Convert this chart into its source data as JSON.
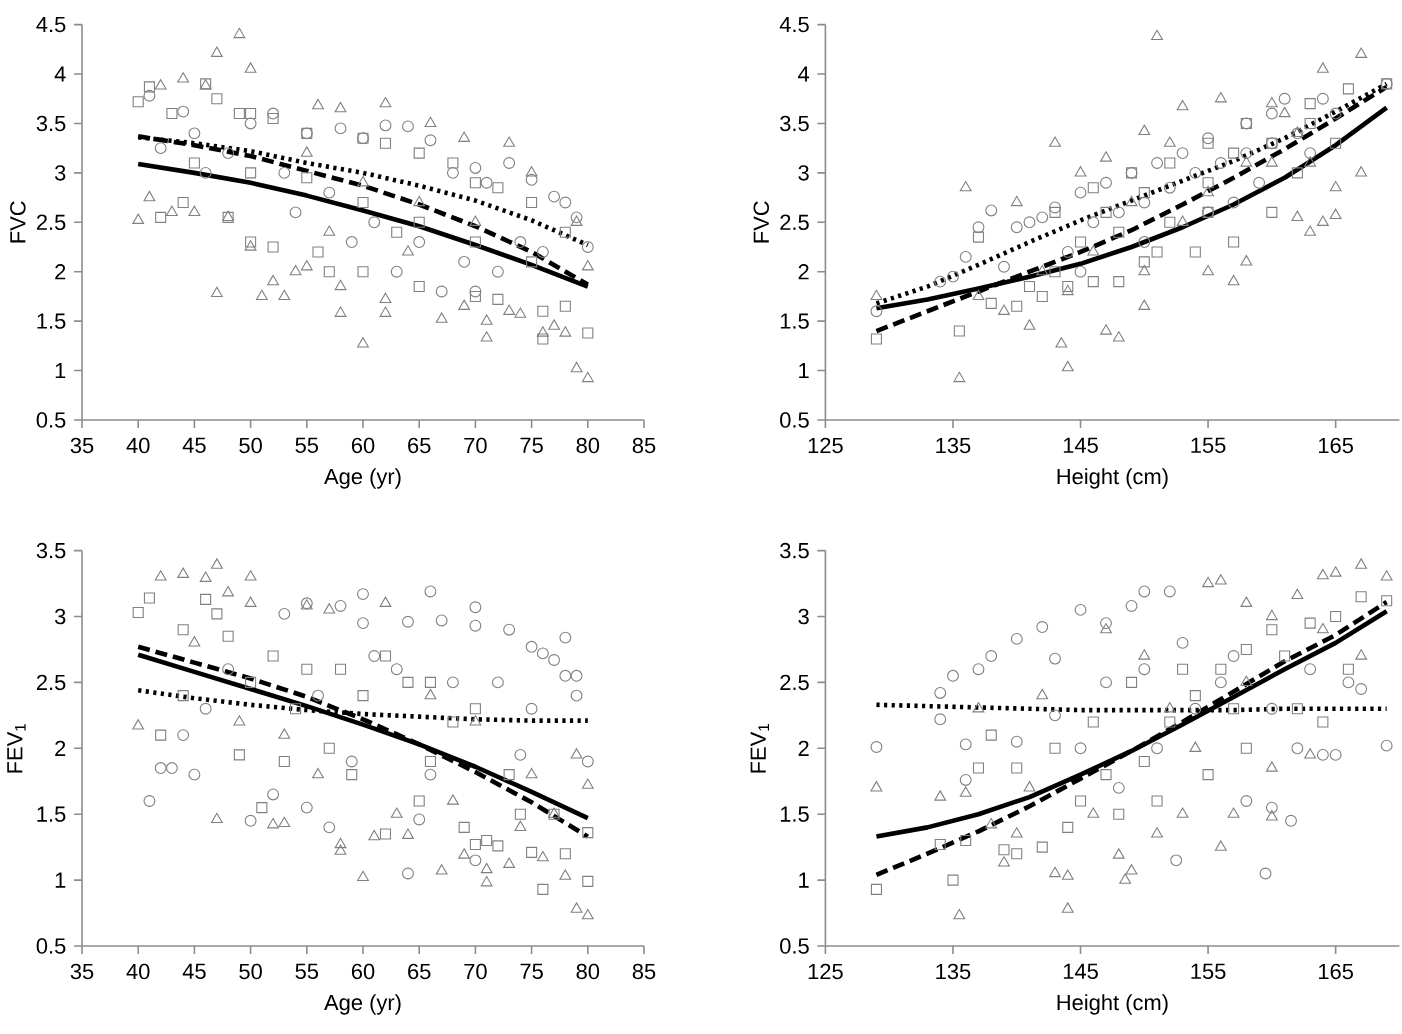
{
  "chart_data": [
    {
      "type": "scatter",
      "xlabel": "Age (yr)",
      "ylabel": "FVC",
      "xlim": [
        35,
        85
      ],
      "xticks": [
        35,
        40,
        45,
        50,
        55,
        60,
        65,
        70,
        75,
        80,
        85
      ],
      "ylim": [
        0.5,
        4.5
      ],
      "yticks": [
        0.5,
        1,
        1.5,
        2,
        2.5,
        3,
        3.5,
        4,
        4.5
      ],
      "series": [
        {
          "type": "scatter",
          "marker": "triangle",
          "color": "#808080",
          "x": [
            49,
            47,
            50,
            44,
            42,
            46,
            41,
            40,
            47,
            52,
            53,
            51,
            54,
            55,
            58,
            58,
            60,
            62,
            62,
            62,
            56,
            58,
            66,
            67,
            69,
            69,
            71,
            71,
            73,
            73,
            74,
            76,
            77,
            78,
            79,
            80,
            80,
            75,
            79,
            48,
            50,
            45,
            43,
            60,
            65,
            70,
            55,
            57,
            64
          ],
          "values": [
            4.4,
            4.21,
            4.05,
            3.95,
            3.88,
            3.88,
            2.75,
            2.52,
            1.78,
            1.9,
            1.75,
            1.75,
            2.0,
            2.05,
            1.58,
            1.85,
            1.27,
            1.58,
            1.72,
            3.7,
            3.68,
            3.65,
            3.5,
            1.52,
            1.65,
            3.35,
            1.33,
            1.5,
            3.3,
            1.6,
            1.57,
            1.38,
            1.45,
            1.38,
            1.02,
            0.92,
            2.05,
            3.0,
            2.5,
            2.55,
            2.25,
            2.6,
            2.6,
            2.9,
            2.7,
            2.5,
            3.2,
            2.4,
            2.2
          ]
        },
        {
          "type": "scatter",
          "marker": "square",
          "color": "#808080",
          "x": [
            40,
            41,
            43,
            46,
            42,
            47,
            49,
            50,
            52,
            55,
            60,
            62,
            65,
            68,
            70,
            72,
            75,
            78,
            80,
            76,
            76,
            78,
            72,
            70,
            65,
            60,
            56,
            52,
            50,
            48,
            44,
            55,
            60,
            65,
            70,
            75,
            45,
            50,
            63,
            57
          ],
          "values": [
            3.72,
            3.87,
            3.6,
            3.9,
            2.55,
            3.75,
            3.6,
            3.6,
            3.55,
            3.4,
            3.35,
            3.3,
            3.2,
            3.1,
            2.9,
            2.85,
            2.7,
            2.4,
            1.38,
            1.32,
            1.6,
            1.65,
            1.72,
            1.75,
            1.85,
            2.0,
            2.2,
            2.25,
            2.3,
            2.55,
            2.7,
            2.95,
            2.7,
            2.5,
            2.3,
            2.1,
            3.1,
            3.0,
            2.4,
            2.0
          ]
        },
        {
          "type": "scatter",
          "marker": "circle",
          "color": "#808080",
          "x": [
            41,
            44,
            52,
            58,
            62,
            64,
            66,
            70,
            73,
            75,
            77,
            78,
            79,
            80,
            71,
            68,
            60,
            55,
            50,
            45,
            48,
            53,
            57,
            61,
            65,
            69,
            72,
            76,
            42,
            46,
            54,
            59,
            63,
            67,
            70,
            74
          ],
          "values": [
            3.78,
            3.62,
            3.6,
            3.45,
            3.48,
            3.47,
            3.33,
            3.05,
            3.1,
            2.93,
            2.76,
            2.7,
            2.55,
            2.25,
            2.9,
            3.0,
            3.35,
            3.4,
            3.5,
            3.4,
            3.2,
            3.0,
            2.8,
            2.5,
            2.3,
            2.1,
            2.0,
            2.2,
            3.25,
            3.0,
            2.6,
            2.3,
            2.0,
            1.8,
            1.8,
            2.3
          ]
        },
        {
          "type": "line",
          "line_style": "solid",
          "color": "#000000",
          "x": [
            40,
            45,
            50,
            55,
            60,
            65,
            70,
            75,
            80
          ],
          "values": [
            3.09,
            3.0,
            2.9,
            2.77,
            2.62,
            2.46,
            2.27,
            2.07,
            1.85
          ]
        },
        {
          "type": "line",
          "line_style": "dashed",
          "color": "#000000",
          "x": [
            40,
            45,
            50,
            55,
            60,
            65,
            70,
            75,
            80
          ],
          "values": [
            3.37,
            3.28,
            3.17,
            3.02,
            2.87,
            2.68,
            2.46,
            2.2,
            1.87
          ]
        },
        {
          "type": "line",
          "line_style": "dotted",
          "color": "#000000",
          "x": [
            40,
            45,
            50,
            55,
            60,
            65,
            70,
            75,
            80
          ],
          "values": [
            3.36,
            3.3,
            3.22,
            3.1,
            3.0,
            2.87,
            2.72,
            2.52,
            2.27
          ]
        }
      ]
    },
    {
      "type": "scatter",
      "xlabel": "Height (cm)",
      "ylabel": "FVC",
      "xlim": [
        125,
        170
      ],
      "xticks": [
        125,
        135,
        145,
        155,
        165
      ],
      "ylim": [
        0.5,
        4.5
      ],
      "yticks": [
        0.5,
        1,
        1.5,
        2,
        2.5,
        3,
        3.5,
        4,
        4.5
      ],
      "series": [
        {
          "type": "scatter",
          "marker": "triangle",
          "color": "#808080",
          "x": [
            129,
            136,
            135.5,
            144,
            143.5,
            143,
            141,
            139,
            147,
            148,
            150,
            151,
            150,
            153,
            156,
            160,
            158,
            157,
            155,
            162,
            163,
            164,
            165,
            167,
            167,
            164,
            165,
            162,
            160,
            153,
            149,
            146,
            144,
            142,
            140,
            137,
            145,
            150,
            155,
            158,
            161,
            163,
            152,
            147
          ],
          "values": [
            1.75,
            2.85,
            0.92,
            1.03,
            1.27,
            3.3,
            1.45,
            1.6,
            1.4,
            1.33,
            1.65,
            4.38,
            3.42,
            3.67,
            3.75,
            3.7,
            2.1,
            1.9,
            2.0,
            2.55,
            2.4,
            2.5,
            2.57,
            3.0,
            4.2,
            4.05,
            2.85,
            3.4,
            3.1,
            2.5,
            2.7,
            2.2,
            1.8,
            2.0,
            2.7,
            1.75,
            3.0,
            2.0,
            2.8,
            3.1,
            3.6,
            3.1,
            3.3,
            3.15
          ]
        },
        {
          "type": "scatter",
          "marker": "square",
          "color": "#808080",
          "x": [
            129,
            135.5,
            138,
            140,
            141,
            137,
            143,
            145,
            147,
            150,
            152,
            155,
            157,
            160,
            163,
            166,
            169,
            160,
            157,
            154,
            150,
            148,
            146,
            144,
            143,
            146,
            149,
            152,
            155,
            158,
            162,
            165,
            163,
            151,
            148,
            155,
            142
          ],
          "values": [
            1.32,
            1.4,
            1.68,
            1.65,
            1.85,
            2.35,
            2.0,
            2.3,
            2.6,
            2.8,
            2.5,
            2.9,
            3.2,
            3.3,
            3.5,
            3.85,
            3.9,
            2.6,
            2.3,
            2.2,
            2.1,
            2.4,
            1.9,
            1.85,
            2.6,
            2.85,
            3.0,
            3.1,
            3.3,
            3.5,
            3.0,
            3.3,
            3.7,
            2.2,
            1.9,
            2.6,
            1.75
          ]
        },
        {
          "type": "scatter",
          "marker": "circle",
          "color": "#808080",
          "x": [
            129,
            134,
            135,
            136,
            137,
            138,
            139,
            140,
            141,
            142,
            143,
            145,
            147,
            149,
            151,
            153,
            155,
            158,
            160,
            161,
            164,
            169,
            146,
            148,
            150,
            152,
            154,
            156,
            158,
            160,
            162,
            144,
            145,
            150,
            155,
            159,
            163,
            165,
            157
          ],
          "values": [
            1.6,
            1.9,
            1.95,
            2.15,
            2.45,
            2.62,
            2.05,
            2.45,
            2.5,
            2.55,
            2.65,
            2.8,
            2.9,
            3.0,
            3.1,
            3.2,
            3.35,
            3.5,
            3.6,
            3.75,
            3.75,
            3.9,
            2.5,
            2.6,
            2.7,
            2.85,
            3.0,
            3.1,
            3.2,
            3.3,
            3.4,
            2.2,
            2.0,
            2.3,
            2.6,
            2.9,
            3.2,
            3.6,
            2.7
          ]
        },
        {
          "type": "line",
          "line_style": "solid",
          "color": "#000000",
          "x": [
            129,
            133,
            137,
            141,
            145,
            149,
            153,
            157,
            161,
            165,
            169
          ],
          "values": [
            1.63,
            1.72,
            1.83,
            1.95,
            2.08,
            2.25,
            2.45,
            2.68,
            2.95,
            3.28,
            3.66
          ]
        },
        {
          "type": "line",
          "line_style": "dashed",
          "color": "#000000",
          "x": [
            129,
            133,
            137,
            141,
            145,
            149,
            153,
            157,
            161,
            165,
            169
          ],
          "values": [
            1.4,
            1.6,
            1.8,
            2.0,
            2.2,
            2.42,
            2.68,
            2.95,
            3.24,
            3.55,
            3.87
          ]
        },
        {
          "type": "line",
          "line_style": "dotted",
          "color": "#000000",
          "x": [
            129,
            133,
            137,
            141,
            145,
            149,
            153,
            157,
            161,
            165,
            169
          ],
          "values": [
            1.68,
            1.85,
            2.07,
            2.3,
            2.52,
            2.72,
            2.92,
            3.12,
            3.35,
            3.62,
            3.9
          ]
        }
      ]
    },
    {
      "type": "scatter",
      "xlabel": "Age (yr)",
      "ylabel": "FEV$_{1}$",
      "xlim": [
        35,
        85
      ],
      "xticks": [
        35,
        40,
        45,
        50,
        55,
        60,
        65,
        70,
        75,
        80,
        85
      ],
      "ylim": [
        0.5,
        3.5
      ],
      "yticks": [
        0.5,
        1,
        1.5,
        2,
        2.5,
        3,
        3.5
      ],
      "series": [
        {
          "type": "scatter",
          "marker": "triangle",
          "color": "#808080",
          "x": [
            42,
            44,
            46,
            47,
            48,
            50,
            50,
            40,
            47,
            52,
            53,
            58,
            58,
            60,
            62,
            64,
            67,
            69,
            71,
            71,
            73,
            76,
            78,
            79,
            80,
            80,
            79,
            61,
            55,
            57,
            66,
            70,
            75,
            45,
            49,
            53,
            56,
            63,
            68,
            74,
            77
          ],
          "values": [
            3.3,
            3.32,
            3.29,
            3.39,
            3.18,
            3.3,
            3.1,
            2.17,
            1.46,
            1.42,
            1.43,
            1.27,
            1.22,
            1.02,
            3.1,
            1.34,
            1.07,
            1.19,
            1.08,
            0.98,
            1.12,
            1.17,
            1.03,
            0.78,
            0.73,
            1.72,
            1.95,
            1.33,
            3.08,
            3.05,
            2.4,
            2.2,
            1.8,
            2.8,
            2.2,
            2.1,
            1.8,
            1.5,
            1.6,
            1.4,
            1.5
          ]
        },
        {
          "type": "scatter",
          "marker": "square",
          "color": "#808080",
          "x": [
            40,
            41,
            46,
            47,
            42,
            44,
            49,
            51,
            53,
            55,
            57,
            60,
            62,
            66,
            70,
            71,
            72,
            75,
            76,
            78,
            80,
            80,
            74,
            68,
            64,
            58,
            52,
            48,
            44,
            62,
            66,
            70,
            73,
            77,
            54,
            59,
            65,
            69,
            50
          ],
          "values": [
            3.03,
            3.14,
            3.13,
            3.02,
            2.1,
            2.4,
            1.95,
            1.55,
            1.9,
            2.6,
            2.0,
            2.4,
            1.35,
            1.9,
            1.27,
            1.3,
            1.26,
            1.21,
            0.93,
            1.2,
            0.99,
            1.36,
            1.5,
            2.2,
            2.5,
            2.6,
            2.7,
            2.85,
            2.9,
            2.7,
            2.5,
            2.3,
            1.8,
            1.5,
            2.3,
            1.8,
            1.6,
            1.4,
            2.5
          ]
        },
        {
          "type": "scatter",
          "marker": "circle",
          "color": "#808080",
          "x": [
            41,
            42,
            43,
            45,
            44,
            55,
            58,
            60,
            60,
            64,
            66,
            67,
            70,
            70,
            73,
            75,
            76,
            77,
            78,
            79,
            79,
            80,
            78,
            70,
            64,
            65,
            55,
            57,
            50,
            52,
            53,
            63,
            68,
            72,
            75,
            61,
            56,
            48,
            46,
            59,
            66,
            74
          ],
          "values": [
            1.6,
            1.85,
            1.85,
            1.8,
            2.1,
            3.1,
            3.08,
            3.17,
            2.95,
            2.96,
            3.19,
            2.97,
            3.07,
            2.93,
            2.9,
            2.77,
            2.72,
            2.67,
            2.84,
            2.55,
            2.4,
            1.9,
            2.55,
            1.15,
            1.05,
            1.46,
            1.55,
            1.4,
            1.45,
            1.65,
            3.02,
            2.6,
            2.5,
            2.5,
            2.3,
            2.7,
            2.4,
            2.6,
            2.3,
            1.9,
            1.8,
            1.95
          ]
        },
        {
          "type": "line",
          "line_style": "solid",
          "color": "#000000",
          "x": [
            40,
            45,
            50,
            55,
            60,
            65,
            70,
            75,
            80
          ],
          "values": [
            2.71,
            2.58,
            2.45,
            2.32,
            2.18,
            2.03,
            1.86,
            1.67,
            1.47
          ]
        },
        {
          "type": "line",
          "line_style": "dashed",
          "color": "#000000",
          "x": [
            40,
            45,
            50,
            55,
            60,
            65,
            70,
            75,
            80
          ],
          "values": [
            2.77,
            2.65,
            2.53,
            2.39,
            2.22,
            2.03,
            1.82,
            1.59,
            1.33
          ]
        },
        {
          "type": "line",
          "line_style": "dotted",
          "color": "#000000",
          "x": [
            40,
            45,
            50,
            55,
            60,
            65,
            70,
            75,
            80
          ],
          "values": [
            2.44,
            2.38,
            2.33,
            2.29,
            2.26,
            2.24,
            2.22,
            2.21,
            2.21
          ]
        }
      ]
    },
    {
      "type": "scatter",
      "xlabel": "Height (cm)",
      "ylabel": "FEV$_{1}$",
      "xlim": [
        125,
        170
      ],
      "xticks": [
        125,
        135,
        145,
        155,
        165
      ],
      "ylim": [
        0.5,
        3.5
      ],
      "yticks": [
        0.5,
        1,
        1.5,
        2,
        2.5,
        3,
        3.5
      ],
      "series": [
        {
          "type": "scatter",
          "marker": "triangle",
          "color": "#808080",
          "x": [
            129,
            134,
            135.5,
            136,
            138,
            139,
            140,
            143,
            144,
            144,
            148,
            148.5,
            149,
            151,
            153,
            156,
            157,
            160,
            155,
            156,
            158,
            160,
            162,
            164,
            165,
            167,
            169,
            167,
            164,
            163,
            160,
            137,
            142,
            147,
            150,
            154,
            146,
            152,
            158,
            141
          ],
          "values": [
            1.7,
            1.63,
            0.73,
            1.66,
            1.42,
            1.13,
            1.35,
            1.05,
            0.78,
            1.03,
            1.19,
            1.0,
            1.07,
            1.35,
            1.5,
            1.25,
            1.5,
            1.48,
            3.25,
            3.27,
            3.1,
            3.0,
            3.16,
            3.31,
            3.33,
            3.39,
            3.3,
            2.7,
            2.9,
            1.95,
            1.85,
            2.3,
            2.4,
            2.9,
            2.7,
            2.0,
            1.5,
            2.3,
            2.5,
            1.7
          ]
        },
        {
          "type": "scatter",
          "marker": "square",
          "color": "#808080",
          "x": [
            129,
            134,
            135,
            136,
            137,
            138,
            139,
            140,
            140,
            142,
            143,
            145,
            148,
            150,
            152,
            154,
            156,
            158,
            160,
            163,
            165,
            167,
            169,
            166,
            162,
            158,
            155,
            151,
            147,
            144,
            146,
            149,
            153,
            157,
            161,
            164
          ],
          "values": [
            0.93,
            1.27,
            1.0,
            1.3,
            1.85,
            2.1,
            1.23,
            1.85,
            1.2,
            1.25,
            2.0,
            1.6,
            1.5,
            1.9,
            2.2,
            2.4,
            2.6,
            2.75,
            2.9,
            2.95,
            3.0,
            3.15,
            3.12,
            2.6,
            2.3,
            2.0,
            1.8,
            1.6,
            1.8,
            1.4,
            2.2,
            2.5,
            2.6,
            2.3,
            2.7,
            2.2
          ]
        },
        {
          "type": "scatter",
          "marker": "circle",
          "color": "#808080",
          "x": [
            129,
            134,
            134,
            135,
            136,
            137,
            138,
            140,
            142,
            143,
            145,
            147,
            149,
            150,
            152,
            152.5,
            158,
            159.5,
            160,
            161.5,
            164,
            165,
            167,
            169,
            136,
            140,
            143,
            147,
            150,
            153,
            156,
            160,
            163,
            145,
            148,
            151,
            154,
            157,
            162,
            166
          ],
          "values": [
            2.01,
            2.42,
            2.22,
            2.55,
            2.03,
            2.6,
            2.7,
            2.83,
            2.92,
            2.68,
            3.05,
            2.95,
            3.08,
            3.19,
            3.19,
            1.15,
            1.6,
            1.05,
            1.55,
            1.45,
            1.95,
            1.95,
            2.45,
            2.02,
            1.76,
            2.05,
            2.25,
            2.5,
            2.6,
            2.8,
            2.5,
            2.3,
            2.6,
            2.0,
            1.7,
            2.0,
            2.3,
            2.7,
            2.0,
            2.5
          ]
        },
        {
          "type": "line",
          "line_style": "solid",
          "color": "#000000",
          "x": [
            129,
            133,
            137,
            141,
            145,
            149,
            153,
            157,
            161,
            165,
            169
          ],
          "values": [
            1.33,
            1.4,
            1.5,
            1.63,
            1.8,
            1.98,
            2.18,
            2.39,
            2.6,
            2.8,
            3.04
          ]
        },
        {
          "type": "line",
          "line_style": "dashed",
          "color": "#000000",
          "x": [
            129,
            133,
            137,
            141,
            145,
            149,
            153,
            157,
            161,
            165,
            169
          ],
          "values": [
            1.04,
            1.2,
            1.37,
            1.56,
            1.77,
            1.98,
            2.2,
            2.43,
            2.66,
            2.86,
            3.11
          ]
        },
        {
          "type": "line",
          "line_style": "dotted",
          "color": "#000000",
          "x": [
            129,
            133,
            137,
            141,
            145,
            149,
            153,
            157,
            161,
            165,
            169
          ],
          "values": [
            2.33,
            2.32,
            2.31,
            2.3,
            2.29,
            2.29,
            2.29,
            2.29,
            2.3,
            2.3,
            2.3
          ]
        }
      ]
    }
  ]
}
